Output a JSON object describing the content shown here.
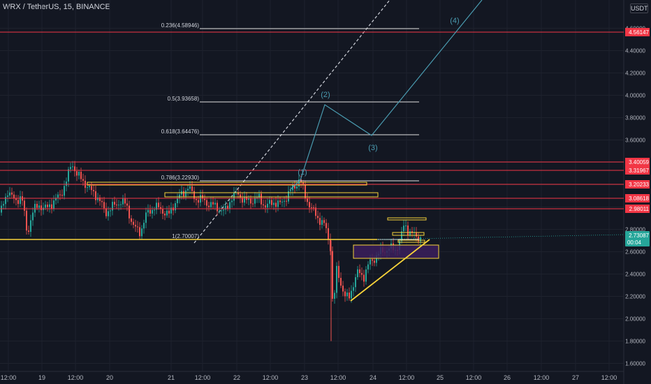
{
  "header": {
    "symbol_line": "WRX / TetherUS, 15, BINANCE",
    "currency_badge": "USDT"
  },
  "colors": {
    "background": "#131722",
    "red_line": "#f23645",
    "white_line": "#d1d4dc",
    "yellow_line": "#f7d33a",
    "teal_wave": "#4a9bb0",
    "candle_up": "#26a69a",
    "candle_down": "#ef5350",
    "purple_box": "#3b1f5c",
    "last_price_badge": "#26a69a"
  },
  "price_axis": {
    "ticks": [
      "4.60000",
      "4.40000",
      "4.20000",
      "4.00000",
      "3.80000",
      "3.60000",
      "3.40000",
      "3.20000",
      "3.00000",
      "2.80000",
      "2.60000",
      "2.40000",
      "2.20000",
      "2.00000",
      "1.80000",
      "1.60000"
    ],
    "red_level_labels": [
      "4.56147",
      "3.40059",
      "3.31967",
      "3.20233",
      "3.08618",
      "2.98011"
    ],
    "last_price": "2.73087",
    "countdown": "00:04"
  },
  "time_axis": {
    "labels": [
      "12:00",
      "19",
      "12:00",
      "20",
      "21",
      "12:00",
      "22",
      "12:00",
      "23",
      "12:00",
      "24",
      "12:00",
      "25",
      "12:00",
      "26",
      "12:00",
      "27",
      "12:00"
    ]
  },
  "fib_levels": [
    {
      "label": "0.236(4.58946)",
      "price": 4.58946
    },
    {
      "label": "0.5(3.93658)",
      "price": 3.93658
    },
    {
      "label": "0.618(3.64476)",
      "price": 3.64476
    },
    {
      "label": "0.786(3.22930)",
      "price": 3.2293
    },
    {
      "label": "1(2.70007)",
      "price": 2.70007
    }
  ],
  "red_levels": [
    4.56147,
    3.40059,
    3.31967,
    3.20233,
    3.08618,
    2.98011
  ],
  "wave_labels": [
    "(1)",
    "(2)",
    "(3)",
    "(4)"
  ]
}
